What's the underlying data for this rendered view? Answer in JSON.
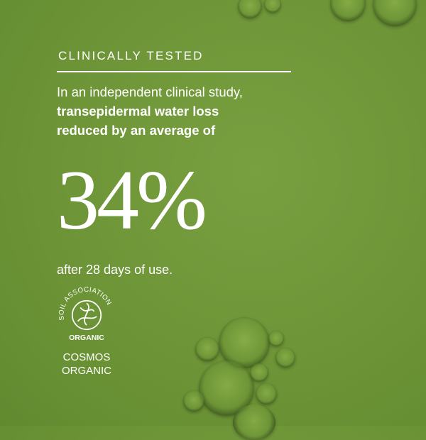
{
  "heading": "CLINICALLY TESTED",
  "intro": {
    "line1": "In an independent clinical study,",
    "bold": "transepidermal water loss reduced by an average of"
  },
  "stat": "34%",
  "after": "after 28 days of use.",
  "logo": {
    "text_top": "SOIL ASSOCIATION",
    "text_bottom": "ORGANIC",
    "caption_line1": "COSMOS",
    "caption_line2": "ORGANIC"
  },
  "colors": {
    "background": "#6e9638",
    "text": "#ffffff"
  }
}
